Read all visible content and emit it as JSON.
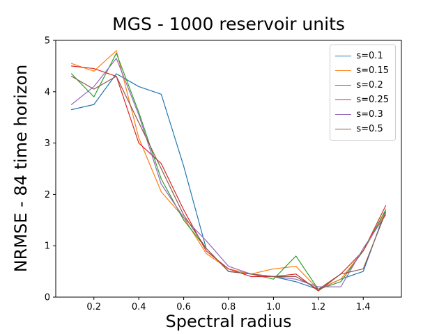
{
  "chart_data": {
    "type": "line",
    "title": "MGS - 1000 reservoir units",
    "xlabel": "Spectral radius",
    "ylabel": "NRMSE - 84 time horizon",
    "xlim": [
      0.03,
      1.57
    ],
    "ylim": [
      0,
      5
    ],
    "xticks": [
      0.2,
      0.4,
      0.6,
      0.8,
      1.0,
      1.2,
      1.4
    ],
    "xtick_labels": [
      "0.2",
      "0.4",
      "0.6",
      "0.8",
      "1.0",
      "1.2",
      "1.4"
    ],
    "yticks": [
      0,
      1,
      2,
      3,
      4,
      5
    ],
    "ytick_labels": [
      "0",
      "1",
      "2",
      "3",
      "4",
      "5"
    ],
    "grid": false,
    "legend_position": "upper right",
    "x": [
      0.1,
      0.2,
      0.3,
      0.4,
      0.5,
      0.6,
      0.7,
      0.8,
      0.9,
      1.0,
      1.1,
      1.2,
      1.3,
      1.4,
      1.5
    ],
    "series": [
      {
        "name": "s=0.1",
        "color": "#1f77b4",
        "values": [
          3.65,
          3.75,
          4.35,
          4.1,
          3.95,
          2.55,
          0.95,
          0.5,
          0.45,
          0.4,
          0.3,
          0.15,
          0.35,
          0.5,
          1.7
        ]
      },
      {
        "name": "s=0.15",
        "color": "#ff7f0e",
        "values": [
          4.55,
          4.4,
          4.8,
          3.1,
          2.05,
          1.55,
          0.85,
          0.55,
          0.45,
          0.55,
          0.6,
          0.15,
          0.35,
          0.9,
          1.65
        ]
      },
      {
        "name": "s=0.2",
        "color": "#2ca02c",
        "values": [
          4.35,
          3.9,
          4.75,
          3.6,
          2.3,
          1.5,
          0.95,
          0.5,
          0.45,
          0.35,
          0.8,
          0.15,
          0.3,
          0.9,
          1.7
        ]
      },
      {
        "name": "s=0.25",
        "color": "#d62728",
        "values": [
          4.5,
          4.45,
          4.3,
          3.0,
          2.6,
          1.7,
          0.9,
          0.55,
          0.4,
          0.4,
          0.45,
          0.12,
          0.45,
          0.9,
          1.78
        ]
      },
      {
        "name": "s=0.3",
        "color": "#9467bd",
        "values": [
          3.75,
          4.1,
          4.65,
          3.55,
          2.2,
          1.55,
          1.1,
          0.6,
          0.45,
          0.4,
          0.35,
          0.2,
          0.2,
          0.95,
          1.6
        ]
      },
      {
        "name": "s=0.5",
        "color": "#8c564b",
        "values": [
          4.3,
          4.05,
          4.3,
          3.4,
          2.5,
          1.6,
          0.95,
          0.5,
          0.45,
          0.4,
          0.4,
          0.15,
          0.45,
          0.55,
          1.65
        ]
      }
    ]
  }
}
